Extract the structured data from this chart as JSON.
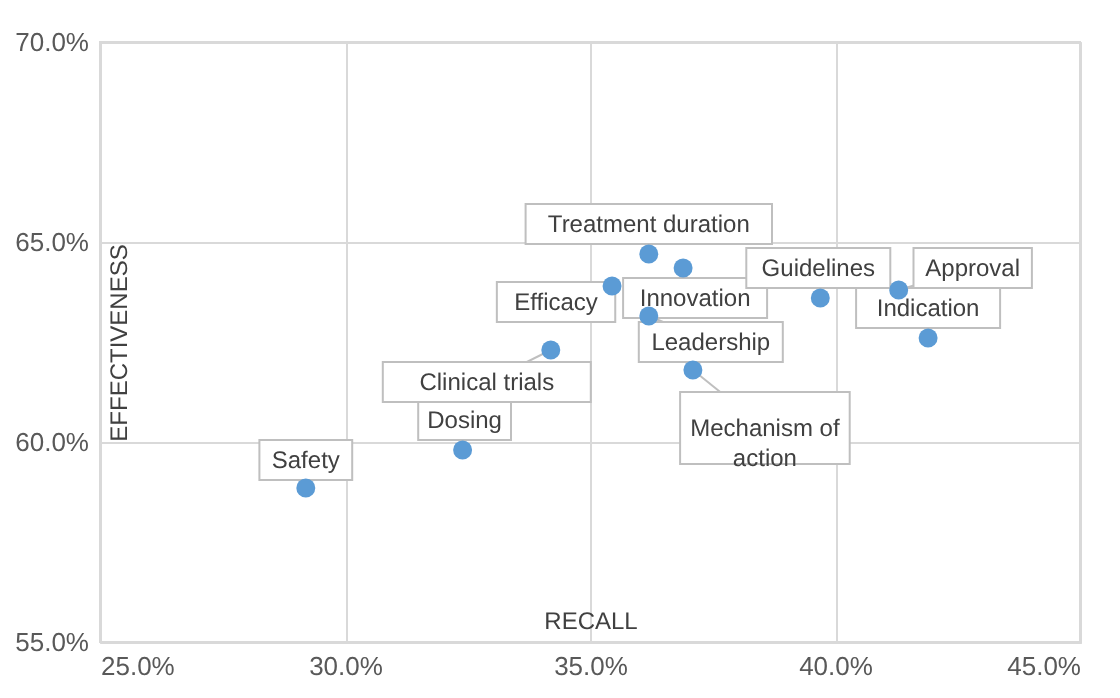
{
  "chart_data": {
    "type": "scatter",
    "xlabel": "RECALL",
    "ylabel": "EFFECTIVENESS",
    "x": [
      29.2,
      32.4,
      34.2,
      35.45,
      36.2,
      36.9,
      36.2,
      37.1,
      39.7,
      41.3,
      41.9
    ],
    "series": [
      {
        "color": "#5b9bd5",
        "values": [
          58.85,
          59.8,
          62.3,
          63.9,
          64.7,
          64.35,
          63.15,
          61.8,
          63.6,
          63.8,
          62.6
        ]
      }
    ],
    "annotations": [
      {
        "text": "Safety",
        "x": 29.2,
        "y": 58.85
      },
      {
        "text": "Dosing",
        "x": 32.4,
        "y": 59.8
      },
      {
        "text": "Clinical trials",
        "x": 34.2,
        "y": 62.3
      },
      {
        "text": "Efficacy",
        "x": 35.45,
        "y": 63.9
      },
      {
        "text": "Treatment duration",
        "x": 36.2,
        "y": 64.7
      },
      {
        "text": "Innovation",
        "x": 36.9,
        "y": 64.35
      },
      {
        "text": "Leadership",
        "x": 36.2,
        "y": 63.15
      },
      {
        "text": "Mechanism of action",
        "x": 37.1,
        "y": 61.8
      },
      {
        "text": "Guidelines",
        "x": 39.7,
        "y": 63.6
      },
      {
        "text": "Approval",
        "x": 41.3,
        "y": 63.8
      },
      {
        "text": "Indication",
        "x": 41.9,
        "y": 62.6
      }
    ],
    "xlim": [
      25,
      45
    ],
    "ylim": [
      55,
      70
    ],
    "xticks": [
      {
        "value": 25,
        "label": "25.0%"
      },
      {
        "value": 30,
        "label": "30.0%"
      },
      {
        "value": 35,
        "label": "35.0%"
      },
      {
        "value": 40,
        "label": "40.0%"
      },
      {
        "value": 45,
        "label": "45.0%"
      }
    ],
    "yticks": [
      {
        "value": 55,
        "label": "55.0%"
      },
      {
        "value": 60,
        "label": "60.0%"
      },
      {
        "value": 65,
        "label": "65.0%"
      },
      {
        "value": 70,
        "label": "70.0%"
      }
    ],
    "grid": true,
    "marker": "circle"
  }
}
